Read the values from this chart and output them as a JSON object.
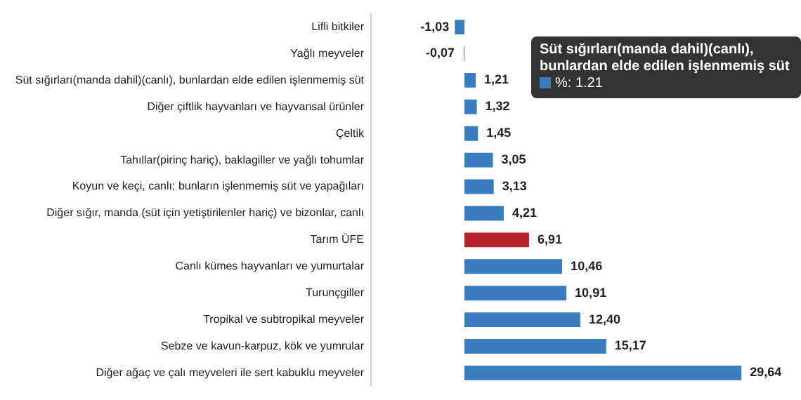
{
  "chart_data": {
    "type": "bar",
    "orientation": "horizontal",
    "categories": [
      "Lifli bitkiler",
      "Yağlı meyveler",
      "Süt sığırları(manda dahil)(canlı), bunlardan elde edilen işlenmemiş süt",
      "Diğer çiftlik hayvanları ve hayvansal ürünler",
      "Çeltik",
      "Tahıllar(pirinç hariç), baklagiller ve yağlı tohumlar",
      "Koyun ve keçi, canlı; bunların işlenmemiş süt ve yapağıları",
      "Diğer sığır, manda (süt için yetiştirilenler hariç) ve bizonlar, canlı",
      "Tarım ÜFE",
      "Canlı kümes hayvanları ve yumurtalar",
      "Turunçgiller",
      "Tropikal ve subtropikal meyveler",
      "Sebze ve kavun-karpuz, kök ve yumrular",
      "Diğer ağaç ve çalı meyveleri ile sert kabuklu meyveler"
    ],
    "values": [
      -1.03,
      -0.07,
      1.21,
      1.32,
      1.45,
      3.05,
      3.13,
      4.21,
      6.91,
      10.46,
      10.91,
      12.4,
      15.17,
      29.64
    ],
    "colors": [
      "#3a7dbf",
      "#3a7dbf",
      "#3a7dbf",
      "#3a7dbf",
      "#3a7dbf",
      "#3a7dbf",
      "#3a7dbf",
      "#3a7dbf",
      "#b5202a",
      "#3a7dbf",
      "#3a7dbf",
      "#3a7dbf",
      "#3a7dbf",
      "#3a7dbf"
    ],
    "value_labels": [
      "-1,03",
      "-0,07",
      "1,21",
      "1,32",
      "1,45",
      "3,05",
      "3,13",
      "4,21",
      "6,91",
      "10,46",
      "10,91",
      "12,40",
      "15,17",
      "29,64"
    ],
    "annotations": [
      "Süt sığırları(manda dahil)(canlı), bunlardan elde edilen işlenmemiş süt",
      "%: 1.21"
    ],
    "legend": false
  }
}
